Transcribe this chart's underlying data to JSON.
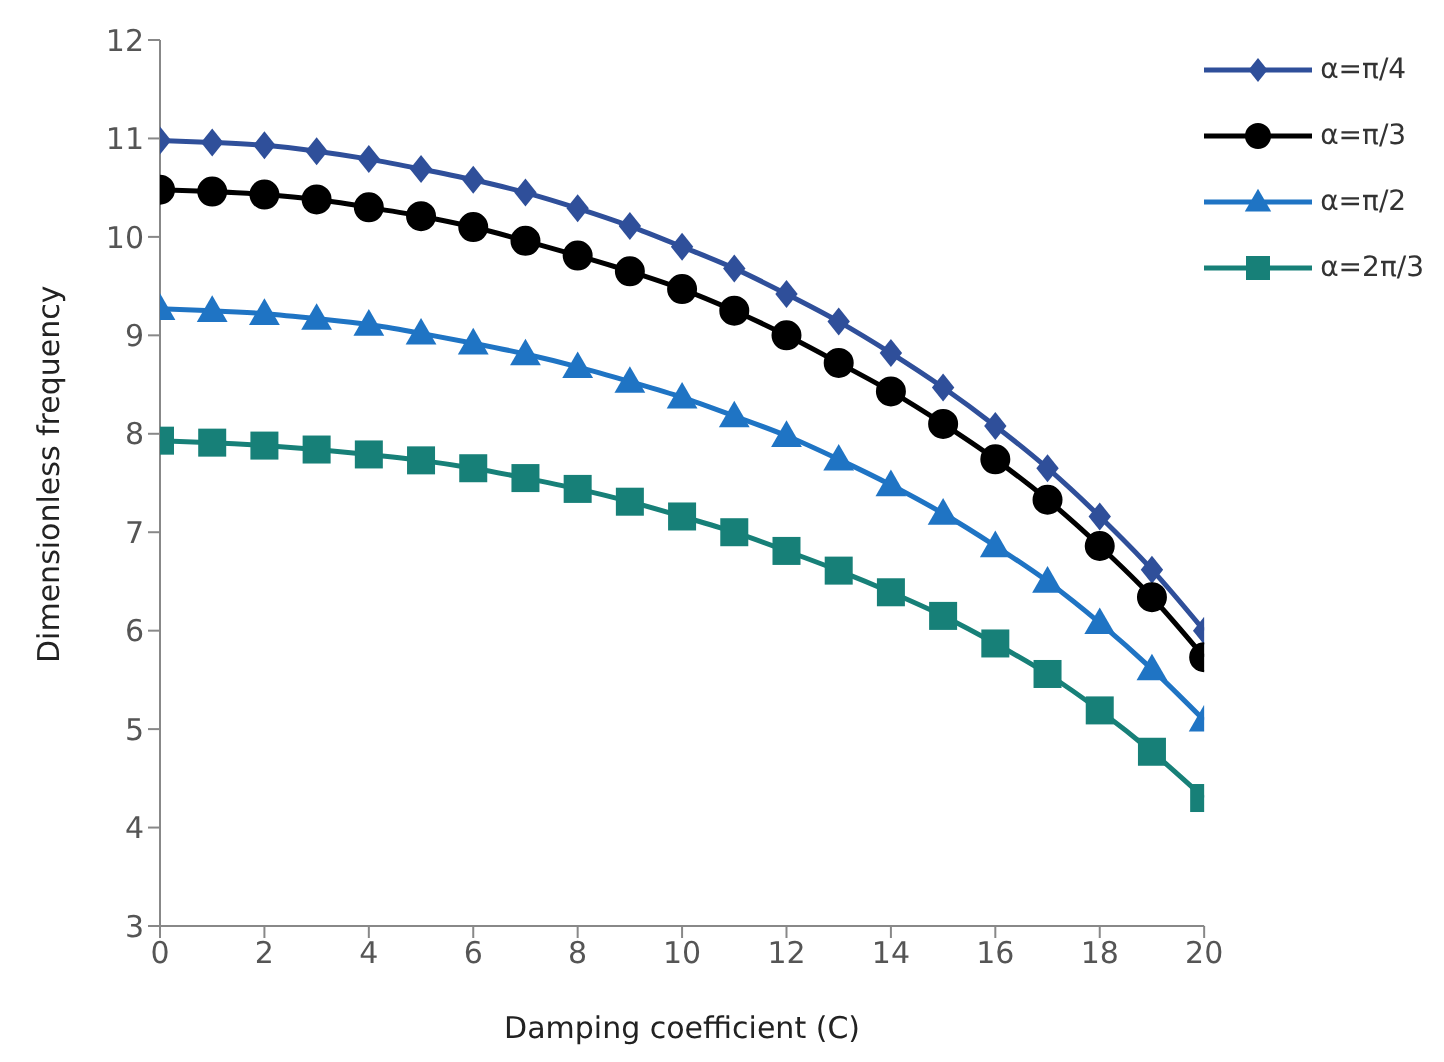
{
  "chart_data": {
    "type": "line",
    "xlabel": "Damping coefficient (C)",
    "ylabel": "Dimensionless frequency",
    "x": [
      0,
      1,
      2,
      3,
      4,
      5,
      6,
      7,
      8,
      9,
      10,
      11,
      12,
      13,
      14,
      15,
      16,
      17,
      18,
      19,
      20
    ],
    "xlim": [
      0,
      20
    ],
    "xticks": [
      0,
      2,
      4,
      6,
      8,
      10,
      12,
      14,
      16,
      18,
      20
    ],
    "ylim": [
      3,
      12
    ],
    "yticks": [
      3,
      4,
      5,
      6,
      7,
      8,
      9,
      10,
      11,
      12
    ],
    "grid": false,
    "legend": "top right",
    "line_style": "solid",
    "series": [
      {
        "name": "α=π/4",
        "color": "#2f4f9a",
        "marker": "diamond",
        "values": [
          10.98,
          10.96,
          10.93,
          10.87,
          10.79,
          10.69,
          10.58,
          10.45,
          10.29,
          10.11,
          9.9,
          9.68,
          9.42,
          9.14,
          8.82,
          8.47,
          8.08,
          7.65,
          7.16,
          6.62,
          6.0
        ]
      },
      {
        "name": "α=π/3",
        "color": "#000000",
        "marker": "circle",
        "values": [
          10.48,
          10.46,
          10.43,
          10.38,
          10.3,
          10.21,
          10.1,
          9.96,
          9.81,
          9.65,
          9.47,
          9.25,
          9.0,
          8.72,
          8.43,
          8.1,
          7.74,
          7.33,
          6.86,
          6.34,
          5.73
        ]
      },
      {
        "name": "α=π/2",
        "color": "#1f74c4",
        "marker": "triangle",
        "values": [
          9.27,
          9.25,
          9.22,
          9.17,
          9.11,
          9.02,
          8.92,
          8.81,
          8.68,
          8.53,
          8.37,
          8.18,
          7.98,
          7.74,
          7.48,
          7.19,
          6.86,
          6.5,
          6.08,
          5.61,
          5.09
        ]
      },
      {
        "name": "α=2π/3",
        "color": "#178078",
        "marker": "square",
        "values": [
          7.93,
          7.91,
          7.88,
          7.84,
          7.79,
          7.73,
          7.65,
          7.55,
          7.44,
          7.31,
          7.16,
          7.0,
          6.81,
          6.61,
          6.39,
          6.15,
          5.87,
          5.56,
          5.19,
          4.77,
          4.3
        ]
      }
    ]
  }
}
